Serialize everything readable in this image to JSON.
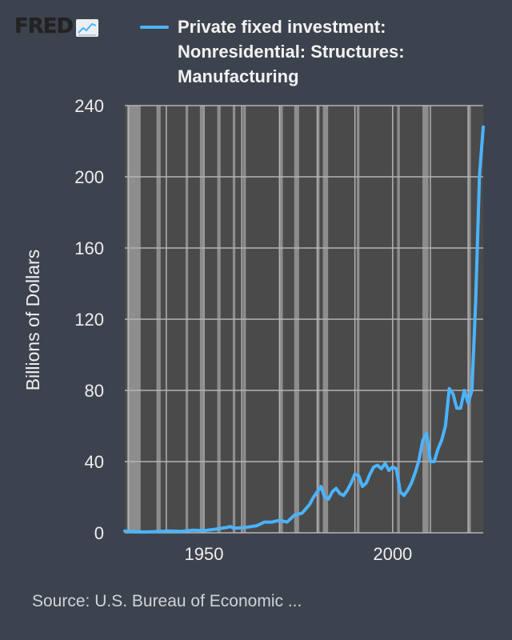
{
  "logo": {
    "text": "FRED",
    "icon": "line-chart-icon"
  },
  "legend": {
    "lines": [
      "Private fixed investment:",
      "Nonresidential: Structures:",
      "Manufacturing"
    ],
    "color": "#4bb3ff"
  },
  "source": "Source: U.S. Bureau of Economic ...",
  "chart_data": {
    "type": "line",
    "title": "",
    "xlabel": "",
    "ylabel": "Billions of Dollars",
    "xlim": [
      1929,
      2024
    ],
    "ylim": [
      0,
      240
    ],
    "x_ticks": [
      1950,
      2000
    ],
    "y_ticks": [
      0,
      40,
      80,
      120,
      160,
      200,
      240
    ],
    "grid": true,
    "legend_position": "top",
    "colors": {
      "background": "#3d434e",
      "plot": "#4a4a4a",
      "grid": "#b3b3b3",
      "recession": "#8d8d8d",
      "line": "#4bb3ff"
    },
    "recessions": [
      [
        1929.6,
        1933.2
      ],
      [
        1937.4,
        1938.5
      ],
      [
        1945.1,
        1945.8
      ],
      [
        1948.9,
        1949.8
      ],
      [
        1953.5,
        1954.4
      ],
      [
        1957.6,
        1958.3
      ],
      [
        1960.3,
        1961.1
      ],
      [
        1969.9,
        1970.9
      ],
      [
        1973.9,
        1975.2
      ],
      [
        1980.0,
        1980.6
      ],
      [
        1981.5,
        1982.9
      ],
      [
        1990.5,
        1991.2
      ],
      [
        2001.2,
        2001.9
      ],
      [
        2007.9,
        2009.5
      ],
      [
        2020.1,
        2020.4
      ]
    ],
    "series": [
      {
        "name": "Private fixed investment: Nonresidential: Structures: Manufacturing",
        "x": [
          1929,
          1932,
          1935,
          1938,
          1941,
          1944,
          1947,
          1950,
          1953,
          1956,
          1957,
          1958,
          1961,
          1964,
          1966,
          1968,
          1970,
          1972,
          1974,
          1976,
          1978,
          1979,
          1980,
          1981,
          1982,
          1983,
          1984,
          1985,
          1986,
          1987,
          1988,
          1989,
          1990,
          1991,
          1992,
          1993,
          1994,
          1995,
          1996,
          1997,
          1998,
          1999,
          2000,
          2001,
          2002,
          2003,
          2004,
          2005,
          2006,
          2007,
          2008,
          2009,
          2010,
          2011,
          2012,
          2013,
          2014,
          2015,
          2016,
          2017,
          2018,
          2019,
          2020,
          2021,
          2022,
          2023,
          2024
        ],
        "values": [
          1,
          0.5,
          0.5,
          0.7,
          1,
          0.8,
          1.5,
          1.2,
          2,
          3,
          3.5,
          2.5,
          3,
          4,
          6,
          6,
          7,
          6,
          10,
          11,
          16,
          20,
          23,
          26,
          20,
          19,
          23,
          25,
          22,
          21,
          24,
          28,
          33,
          32,
          26,
          28,
          33,
          37,
          38,
          36,
          39,
          35,
          37,
          36,
          23,
          21,
          24,
          28,
          34,
          41,
          52,
          56,
          40,
          40,
          47,
          52,
          60,
          81,
          78,
          70,
          70,
          80,
          73,
          80,
          130,
          200,
          228
        ]
      }
    ]
  }
}
